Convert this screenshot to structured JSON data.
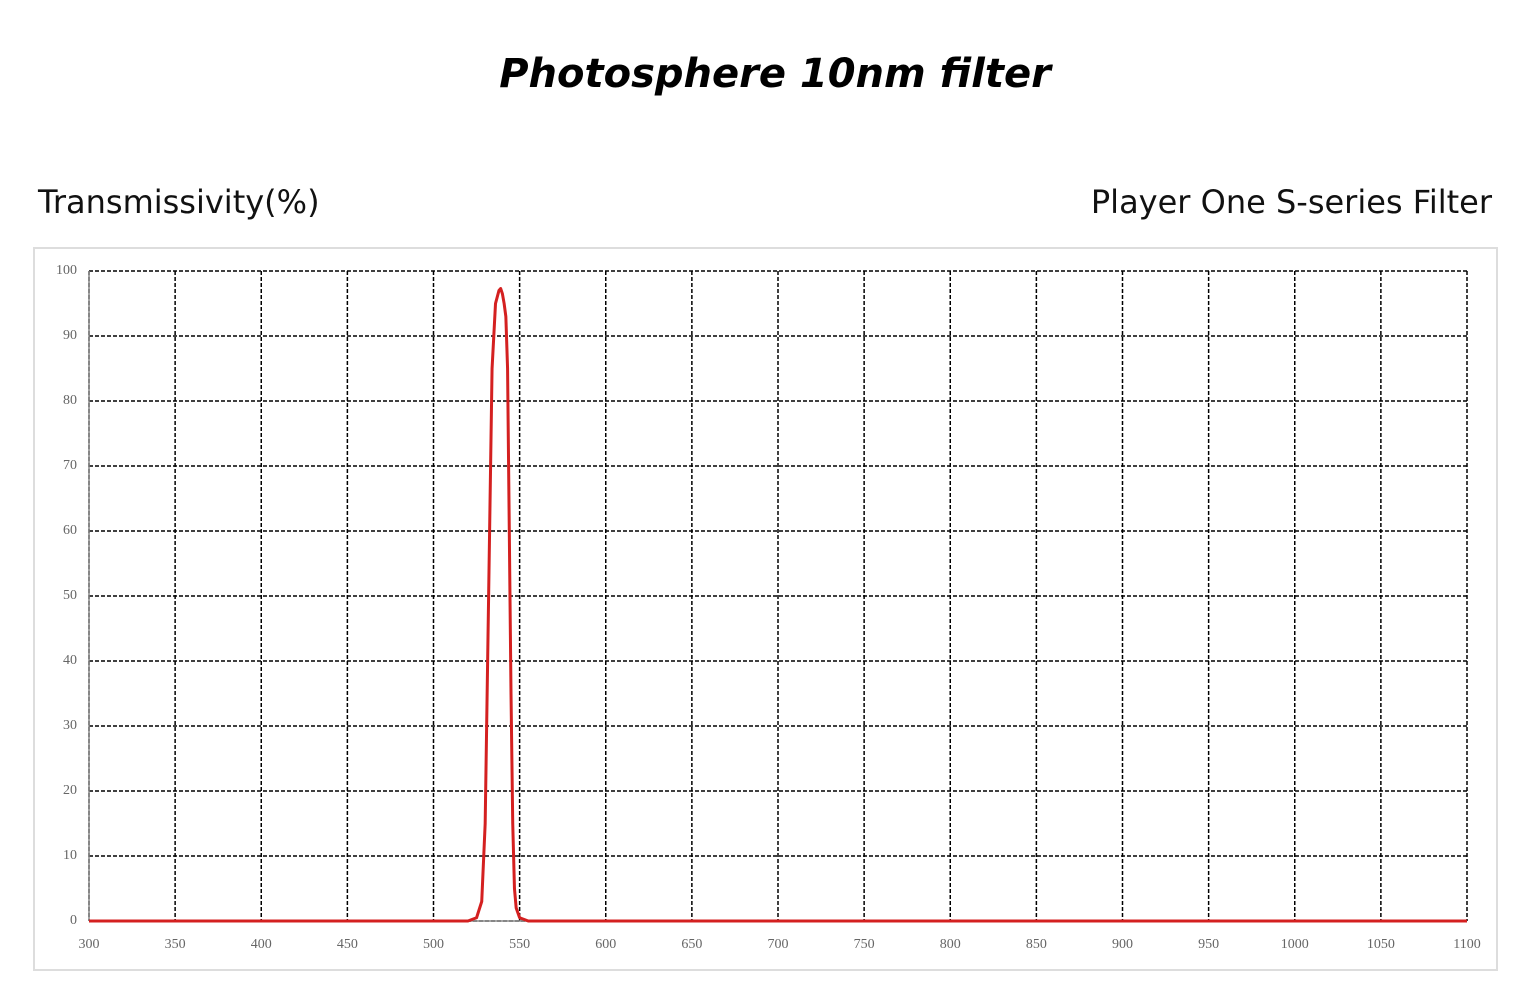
{
  "chart_data": {
    "type": "line",
    "title": "Photosphere 10nm filter",
    "y_label": "Transmissivity(%)",
    "annotation": "Player One S-series Filter",
    "x": [
      300,
      520,
      525,
      528,
      530,
      532,
      534,
      536,
      538,
      539,
      540,
      541,
      542,
      543,
      544,
      545,
      546,
      547,
      548,
      550,
      555,
      1100
    ],
    "series": [
      {
        "color": "#d42020",
        "values": [
          0,
          0,
          0.5,
          3,
          15,
          50,
          85,
          95,
          97,
          97.3,
          96.5,
          95,
          93,
          85,
          60,
          35,
          15,
          5,
          2,
          0.5,
          0,
          0
        ]
      }
    ],
    "xlim": [
      300,
      1100
    ],
    "xticks": [
      300,
      350,
      400,
      450,
      500,
      550,
      600,
      650,
      700,
      750,
      800,
      850,
      900,
      950,
      1000,
      1050,
      1100
    ],
    "ylim": [
      0,
      100
    ],
    "yticks": [
      0,
      10,
      20,
      30,
      40,
      50,
      60,
      70,
      80,
      90,
      100
    ],
    "grid": true
  }
}
